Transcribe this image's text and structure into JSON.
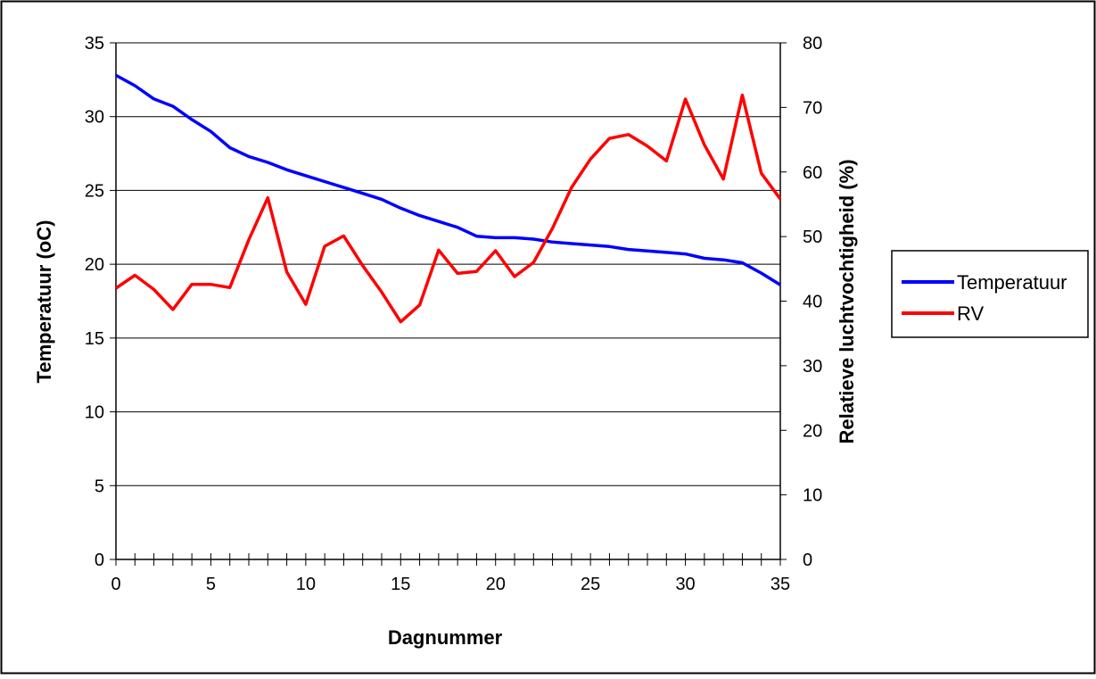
{
  "chart_data": {
    "type": "line",
    "xlabel": "Dagnummer",
    "ylabel_left": "Temperatuur (oC)",
    "ylabel_right": "Relatieve luchtvochtigheid (%)",
    "xlim": [
      0,
      35
    ],
    "ylim_left": [
      0,
      35
    ],
    "ylim_right": [
      0,
      80
    ],
    "x_ticks": [
      0,
      5,
      10,
      15,
      20,
      25,
      30,
      35
    ],
    "y_ticks_left": [
      0,
      5,
      10,
      15,
      20,
      25,
      30,
      35
    ],
    "y_ticks_right": [
      0,
      10,
      20,
      30,
      40,
      50,
      60,
      70,
      80
    ],
    "grid": "horizontal",
    "legend_position": "right",
    "x": [
      0,
      1,
      2,
      3,
      4,
      5,
      6,
      7,
      8,
      9,
      10,
      11,
      12,
      13,
      14,
      15,
      16,
      17,
      18,
      19,
      20,
      21,
      22,
      23,
      24,
      25,
      26,
      27,
      28,
      29,
      30,
      31,
      32,
      33,
      34,
      35
    ],
    "series": [
      {
        "name": "Temperatuur",
        "axis": "left",
        "color": "#0000ff",
        "values": [
          32.8,
          32.1,
          31.2,
          30.7,
          29.8,
          29.0,
          27.9,
          27.3,
          26.9,
          26.4,
          26.0,
          25.6,
          25.2,
          24.8,
          24.4,
          23.8,
          23.3,
          22.9,
          22.5,
          21.9,
          21.8,
          21.8,
          21.7,
          21.5,
          21.4,
          21.3,
          21.2,
          21.0,
          20.9,
          20.8,
          20.7,
          20.4,
          20.3,
          20.1,
          19.4,
          18.6
        ]
      },
      {
        "name": "RV",
        "axis": "right",
        "color": "#ff0000",
        "values": [
          42.0,
          44.0,
          41.8,
          38.7,
          42.6,
          42.6,
          42.1,
          49.5,
          56.0,
          44.5,
          39.5,
          48.5,
          50.1,
          45.5,
          41.4,
          36.8,
          39.4,
          47.9,
          44.3,
          44.6,
          47.8,
          43.8,
          46.0,
          51.3,
          57.6,
          62.0,
          65.2,
          65.8,
          64.0,
          61.7,
          71.3,
          64.2,
          58.9,
          71.9,
          59.8,
          55.8
        ]
      }
    ]
  }
}
